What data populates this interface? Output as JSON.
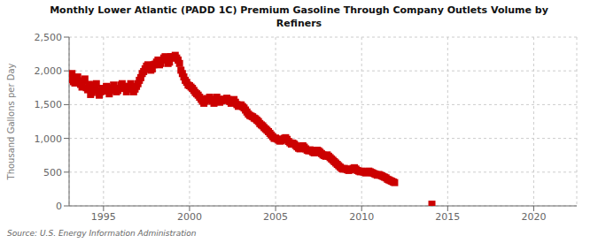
{
  "chart_data": {
    "type": "scatter",
    "title": "Monthly Lower Atlantic (PADD 1C) Premium Gasoline Through Company Outlets Volume by\nRefiners",
    "y_label": "Thousand Gallons per Day",
    "annotations": [
      "Source: U.S. Energy Information Administration"
    ],
    "color": "#cc0000",
    "marker": "square",
    "line_style": "none",
    "grid": true,
    "xlim": [
      1993.0,
      2022.5
    ],
    "ylim": [
      0,
      2500
    ],
    "xticks": [
      1995,
      2000,
      2005,
      2010,
      2015,
      2020
    ],
    "yticks": [
      0,
      500,
      {
        "value": 1000,
        "label": "1,000"
      },
      {
        "value": 1500,
        "label": "1,500"
      },
      {
        "value": 2000,
        "label": "2,000"
      },
      {
        "value": 2500,
        "label": "2,500"
      }
    ],
    "x": [
      1993.0,
      1993.083,
      1993.167,
      1993.25,
      1993.333,
      1993.417,
      1993.5,
      1993.583,
      1993.667,
      1993.75,
      1993.833,
      1993.917,
      1994.0,
      1994.083,
      1994.167,
      1994.25,
      1994.333,
      1994.417,
      1994.5,
      1994.583,
      1994.667,
      1994.75,
      1994.833,
      1994.917,
      1995.0,
      1995.083,
      1995.167,
      1995.25,
      1995.333,
      1995.417,
      1995.5,
      1995.583,
      1995.667,
      1995.75,
      1995.833,
      1995.917,
      1996.0,
      1996.083,
      1996.167,
      1996.25,
      1996.333,
      1996.417,
      1996.5,
      1996.583,
      1996.667,
      1996.75,
      1996.833,
      1996.917,
      1997.0,
      1997.083,
      1997.167,
      1997.25,
      1997.333,
      1997.417,
      1997.5,
      1997.583,
      1997.667,
      1997.75,
      1997.833,
      1997.917,
      1998.0,
      1998.083,
      1998.167,
      1998.25,
      1998.333,
      1998.417,
      1998.5,
      1998.583,
      1998.667,
      1998.75,
      1998.833,
      1998.917,
      1999.0,
      1999.083,
      1999.167,
      1999.25,
      1999.333,
      1999.417,
      1999.5,
      1999.583,
      1999.667,
      1999.75,
      1999.833,
      1999.917,
      2000.0,
      2000.083,
      2000.167,
      2000.25,
      2000.333,
      2000.417,
      2000.5,
      2000.583,
      2000.667,
      2000.75,
      2000.833,
      2000.917,
      2001.0,
      2001.083,
      2001.167,
      2001.25,
      2001.333,
      2001.417,
      2001.5,
      2001.583,
      2001.667,
      2001.75,
      2001.833,
      2001.917,
      2002.0,
      2002.083,
      2002.167,
      2002.25,
      2002.333,
      2002.417,
      2002.5,
      2002.583,
      2002.667,
      2002.75,
      2002.833,
      2002.917,
      2003.0,
      2003.083,
      2003.167,
      2003.25,
      2003.333,
      2003.417,
      2003.5,
      2003.583,
      2003.667,
      2003.75,
      2003.833,
      2003.917,
      2004.0,
      2004.083,
      2004.167,
      2004.25,
      2004.333,
      2004.417,
      2004.5,
      2004.583,
      2004.667,
      2004.75,
      2004.833,
      2004.917,
      2005.0,
      2005.083,
      2005.167,
      2005.25,
      2005.333,
      2005.417,
      2005.5,
      2005.583,
      2005.667,
      2005.75,
      2005.833,
      2005.917,
      2006.0,
      2006.083,
      2006.167,
      2006.25,
      2006.333,
      2006.417,
      2006.5,
      2006.583,
      2006.667,
      2006.75,
      2006.833,
      2006.917,
      2007.0,
      2007.083,
      2007.167,
      2007.25,
      2007.333,
      2007.417,
      2007.5,
      2007.583,
      2007.667,
      2007.75,
      2007.833,
      2007.917,
      2008.0,
      2008.083,
      2008.167,
      2008.25,
      2008.333,
      2008.417,
      2008.5,
      2008.583,
      2008.667,
      2008.75,
      2008.833,
      2008.917,
      2009.0,
      2009.083,
      2009.167,
      2009.25,
      2009.333,
      2009.417,
      2009.5,
      2009.583,
      2009.667,
      2009.75,
      2009.833,
      2009.917,
      2010.0,
      2010.083,
      2010.167,
      2010.25,
      2010.333,
      2010.417,
      2010.5,
      2010.583,
      2010.667,
      2010.75,
      2010.833,
      2010.917,
      2011.0,
      2011.083,
      2011.167,
      2011.25,
      2011.333,
      2011.417,
      2011.5,
      2011.583,
      2011.667,
      2011.75,
      2011.833,
      2011.917,
      2014.083
    ],
    "values": [
      1900,
      1870,
      1960,
      1840,
      1820,
      1890,
      1910,
      1850,
      1800,
      1760,
      1850,
      1880,
      1750,
      1720,
      1800,
      1650,
      1680,
      1740,
      1790,
      1810,
      1710,
      1640,
      1690,
      1740,
      1740,
      1700,
      1770,
      1740,
      1660,
      1710,
      1750,
      1790,
      1740,
      1690,
      1710,
      1740,
      1790,
      1810,
      1770,
      1740,
      1690,
      1730,
      1770,
      1810,
      1750,
      1690,
      1730,
      1770,
      1810,
      1860,
      1900,
      1960,
      1990,
      2030,
      2070,
      2090,
      2060,
      2010,
      2030,
      2090,
      2100,
      2130,
      2160,
      2090,
      2110,
      2160,
      2190,
      2210,
      2160,
      2110,
      2130,
      2210,
      2210,
      2190,
      2230,
      2190,
      2160,
      2110,
      2010,
      1960,
      1910,
      1860,
      1830,
      1790,
      1780,
      1760,
      1740,
      1710,
      1680,
      1660,
      1640,
      1610,
      1580,
      1550,
      1520,
      1550,
      1590,
      1570,
      1610,
      1580,
      1550,
      1520,
      1570,
      1610,
      1575,
      1535,
      1555,
      1575,
      1580,
      1560,
      1595,
      1575,
      1545,
      1520,
      1555,
      1575,
      1535,
      1500,
      1475,
      1495,
      1495,
      1470,
      1450,
      1420,
      1390,
      1360,
      1340,
      1330,
      1320,
      1300,
      1290,
      1270,
      1250,
      1220,
      1200,
      1185,
      1160,
      1140,
      1120,
      1100,
      1075,
      1050,
      1025,
      1000,
      1005,
      990,
      975,
      960,
      965,
      985,
      1000,
      1010,
      985,
      955,
      935,
      915,
      930,
      915,
      895,
      875,
      855,
      845,
      875,
      890,
      870,
      845,
      825,
      815,
      830,
      815,
      795,
      785,
      805,
      825,
      815,
      795,
      775,
      755,
      745,
      735,
      755,
      735,
      715,
      695,
      675,
      655,
      635,
      615,
      595,
      575,
      555,
      545,
      555,
      545,
      535,
      525,
      535,
      545,
      555,
      565,
      545,
      525,
      515,
      505,
      515,
      505,
      498,
      488,
      505,
      515,
      505,
      495,
      485,
      475,
      465,
      455,
      465,
      455,
      445,
      435,
      425,
      415,
      395,
      385,
      375,
      365,
      355,
      345,
      25
    ]
  }
}
